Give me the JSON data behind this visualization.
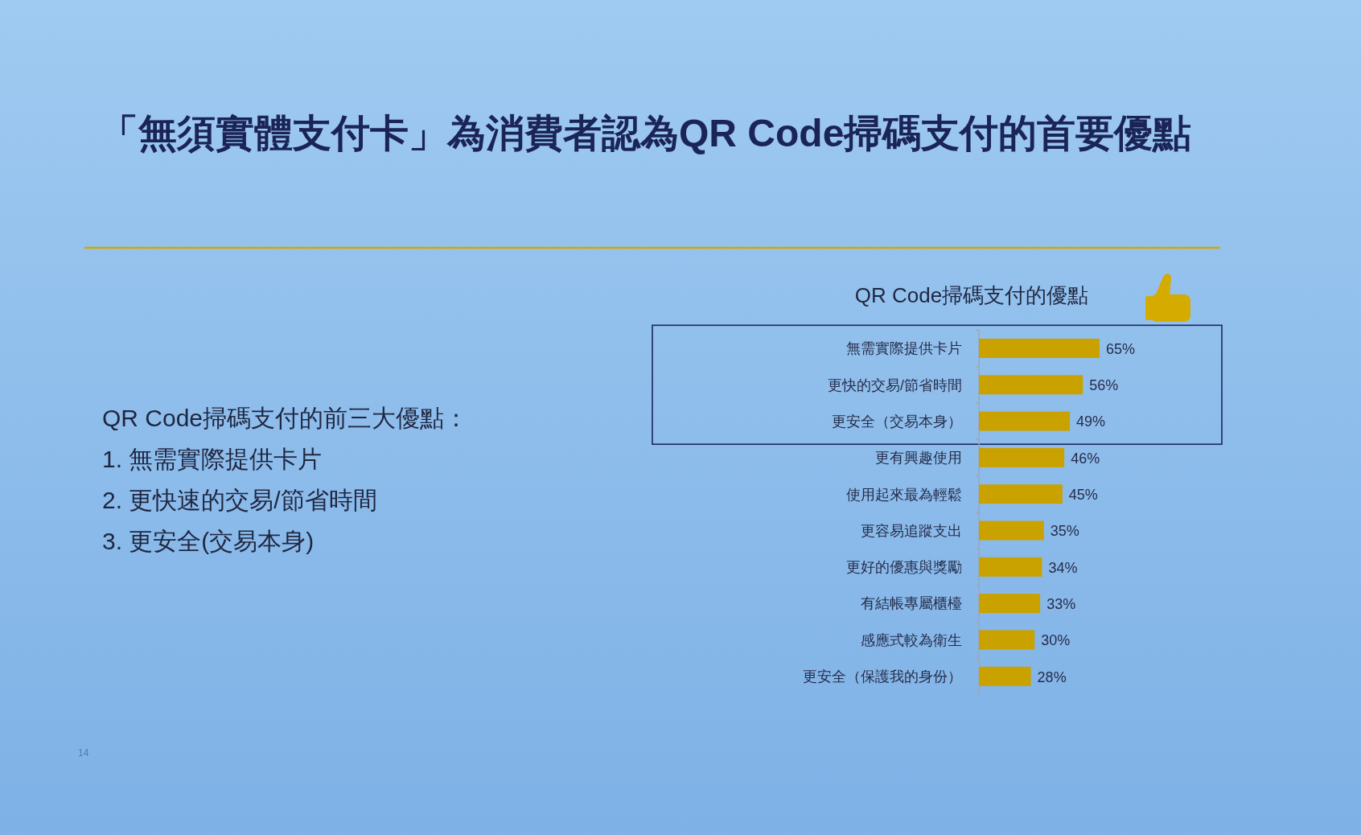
{
  "chart_data": {
    "type": "bar",
    "orientation": "horizontal",
    "title": "「無須實體支付卡」為消費者認為QR Code掃碼支付的首要優點",
    "subtitle": "QR Code掃碼支付的優點",
    "categories": [
      "無需實際提供卡片",
      "更快的交易/節省時間",
      "更安全（交易本身）",
      "更有興趣使用",
      "使用起來最為輕鬆",
      "更容易追蹤支出",
      "更好的優惠與獎勵",
      "有結帳專屬櫃檯",
      "感應式較為衛生",
      "更安全（保護我的身份）"
    ],
    "values": [
      65,
      56,
      49,
      46,
      45,
      35,
      34,
      33,
      30,
      28
    ],
    "value_labels": [
      "65%",
      "56%",
      "49%",
      "46%",
      "45%",
      "35%",
      "34%",
      "33%",
      "30%",
      "28%"
    ],
    "color": "#c9a200",
    "annotations": [
      "QR Code掃碼支付的前三大優點：",
      "1. 無需實際提供卡片",
      "2. 更快速的交易/節省時間",
      "3. 更安全(交易本身)",
      "14"
    ]
  }
}
